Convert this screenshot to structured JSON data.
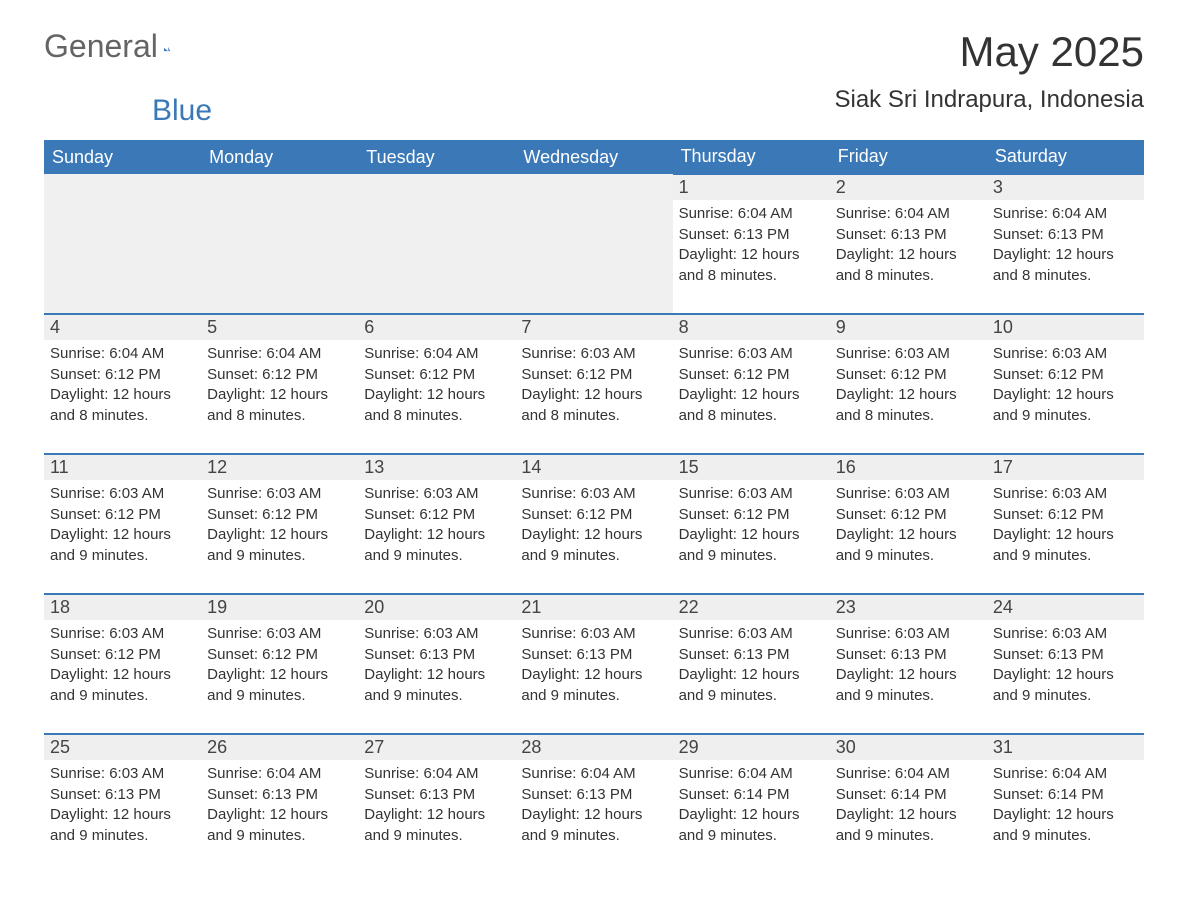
{
  "brand": {
    "name1": "General",
    "name2": "Blue",
    "accent": "#3a78b8"
  },
  "title": "May 2025",
  "location": "Siak Sri Indrapura, Indonesia",
  "style": {
    "header_bg": "#3a78b8",
    "header_text": "#ffffff",
    "daynum_bg": "#efefef",
    "row_border": "#3a78b8",
    "background": "#ffffff",
    "text_color": "#333333"
  },
  "weekdays": [
    "Sunday",
    "Monday",
    "Tuesday",
    "Wednesday",
    "Thursday",
    "Friday",
    "Saturday"
  ],
  "leading_blanks": 4,
  "days": [
    {
      "n": 1,
      "sunrise": "6:04 AM",
      "sunset": "6:13 PM",
      "daylight": "12 hours and 8 minutes."
    },
    {
      "n": 2,
      "sunrise": "6:04 AM",
      "sunset": "6:13 PM",
      "daylight": "12 hours and 8 minutes."
    },
    {
      "n": 3,
      "sunrise": "6:04 AM",
      "sunset": "6:13 PM",
      "daylight": "12 hours and 8 minutes."
    },
    {
      "n": 4,
      "sunrise": "6:04 AM",
      "sunset": "6:12 PM",
      "daylight": "12 hours and 8 minutes."
    },
    {
      "n": 5,
      "sunrise": "6:04 AM",
      "sunset": "6:12 PM",
      "daylight": "12 hours and 8 minutes."
    },
    {
      "n": 6,
      "sunrise": "6:04 AM",
      "sunset": "6:12 PM",
      "daylight": "12 hours and 8 minutes."
    },
    {
      "n": 7,
      "sunrise": "6:03 AM",
      "sunset": "6:12 PM",
      "daylight": "12 hours and 8 minutes."
    },
    {
      "n": 8,
      "sunrise": "6:03 AM",
      "sunset": "6:12 PM",
      "daylight": "12 hours and 8 minutes."
    },
    {
      "n": 9,
      "sunrise": "6:03 AM",
      "sunset": "6:12 PM",
      "daylight": "12 hours and 8 minutes."
    },
    {
      "n": 10,
      "sunrise": "6:03 AM",
      "sunset": "6:12 PM",
      "daylight": "12 hours and 9 minutes."
    },
    {
      "n": 11,
      "sunrise": "6:03 AM",
      "sunset": "6:12 PM",
      "daylight": "12 hours and 9 minutes."
    },
    {
      "n": 12,
      "sunrise": "6:03 AM",
      "sunset": "6:12 PM",
      "daylight": "12 hours and 9 minutes."
    },
    {
      "n": 13,
      "sunrise": "6:03 AM",
      "sunset": "6:12 PM",
      "daylight": "12 hours and 9 minutes."
    },
    {
      "n": 14,
      "sunrise": "6:03 AM",
      "sunset": "6:12 PM",
      "daylight": "12 hours and 9 minutes."
    },
    {
      "n": 15,
      "sunrise": "6:03 AM",
      "sunset": "6:12 PM",
      "daylight": "12 hours and 9 minutes."
    },
    {
      "n": 16,
      "sunrise": "6:03 AM",
      "sunset": "6:12 PM",
      "daylight": "12 hours and 9 minutes."
    },
    {
      "n": 17,
      "sunrise": "6:03 AM",
      "sunset": "6:12 PM",
      "daylight": "12 hours and 9 minutes."
    },
    {
      "n": 18,
      "sunrise": "6:03 AM",
      "sunset": "6:12 PM",
      "daylight": "12 hours and 9 minutes."
    },
    {
      "n": 19,
      "sunrise": "6:03 AM",
      "sunset": "6:12 PM",
      "daylight": "12 hours and 9 minutes."
    },
    {
      "n": 20,
      "sunrise": "6:03 AM",
      "sunset": "6:13 PM",
      "daylight": "12 hours and 9 minutes."
    },
    {
      "n": 21,
      "sunrise": "6:03 AM",
      "sunset": "6:13 PM",
      "daylight": "12 hours and 9 minutes."
    },
    {
      "n": 22,
      "sunrise": "6:03 AM",
      "sunset": "6:13 PM",
      "daylight": "12 hours and 9 minutes."
    },
    {
      "n": 23,
      "sunrise": "6:03 AM",
      "sunset": "6:13 PM",
      "daylight": "12 hours and 9 minutes."
    },
    {
      "n": 24,
      "sunrise": "6:03 AM",
      "sunset": "6:13 PM",
      "daylight": "12 hours and 9 minutes."
    },
    {
      "n": 25,
      "sunrise": "6:03 AM",
      "sunset": "6:13 PM",
      "daylight": "12 hours and 9 minutes."
    },
    {
      "n": 26,
      "sunrise": "6:04 AM",
      "sunset": "6:13 PM",
      "daylight": "12 hours and 9 minutes."
    },
    {
      "n": 27,
      "sunrise": "6:04 AM",
      "sunset": "6:13 PM",
      "daylight": "12 hours and 9 minutes."
    },
    {
      "n": 28,
      "sunrise": "6:04 AM",
      "sunset": "6:13 PM",
      "daylight": "12 hours and 9 minutes."
    },
    {
      "n": 29,
      "sunrise": "6:04 AM",
      "sunset": "6:14 PM",
      "daylight": "12 hours and 9 minutes."
    },
    {
      "n": 30,
      "sunrise": "6:04 AM",
      "sunset": "6:14 PM",
      "daylight": "12 hours and 9 minutes."
    },
    {
      "n": 31,
      "sunrise": "6:04 AM",
      "sunset": "6:14 PM",
      "daylight": "12 hours and 9 minutes."
    }
  ],
  "labels": {
    "sunrise": "Sunrise:",
    "sunset": "Sunset:",
    "daylight": "Daylight:"
  }
}
